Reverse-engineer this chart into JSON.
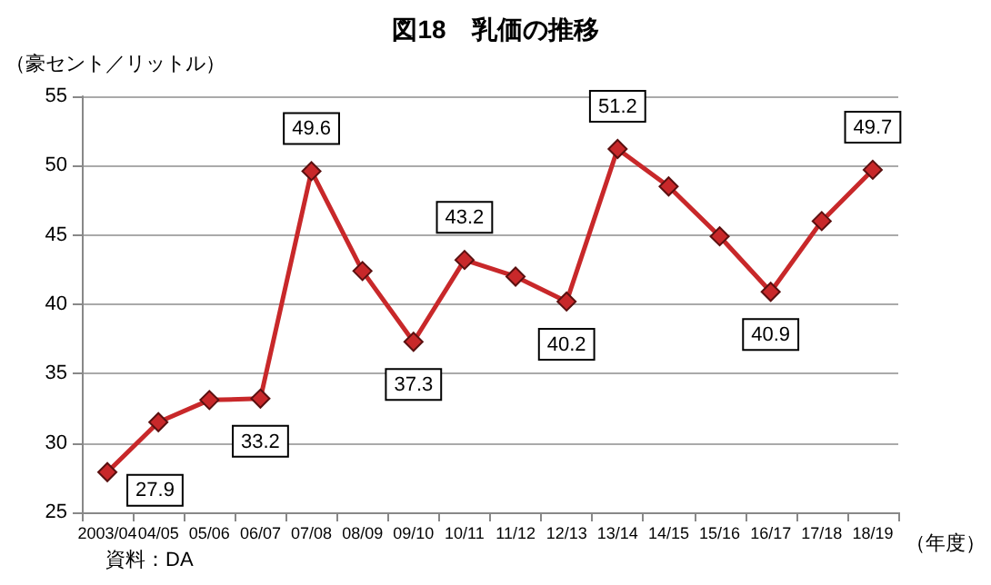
{
  "chart_data": {
    "type": "line",
    "title": "図18　乳価の推移",
    "ylabel": "（豪セント／リットル）",
    "xlabel": "（年度）",
    "annotations": [
      "資料：DA"
    ],
    "categories": [
      "2003/04",
      "04/05",
      "05/06",
      "06/07",
      "07/08",
      "08/09",
      "09/10",
      "10/11",
      "11/12",
      "12/13",
      "13/14",
      "14/15",
      "15/16",
      "16/17",
      "17/18",
      "18/19"
    ],
    "series": [
      {
        "color": "#c8282a",
        "values": [
          27.9,
          31.5,
          33.1,
          33.2,
          49.6,
          42.4,
          37.3,
          43.2,
          42.0,
          40.2,
          51.2,
          48.5,
          44.9,
          40.9,
          46.0,
          49.7
        ],
        "value_labels": [
          "27.9",
          null,
          null,
          "33.2",
          "49.6",
          null,
          "37.3",
          "43.2",
          null,
          "40.2",
          "51.2",
          null,
          null,
          "40.9",
          null,
          "49.7"
        ]
      }
    ],
    "ylim": [
      25,
      55
    ],
    "yticks": [
      25,
      30,
      35,
      40,
      45,
      50,
      55
    ],
    "grid": "y",
    "marker": "diamond",
    "line_style": "solid"
  }
}
